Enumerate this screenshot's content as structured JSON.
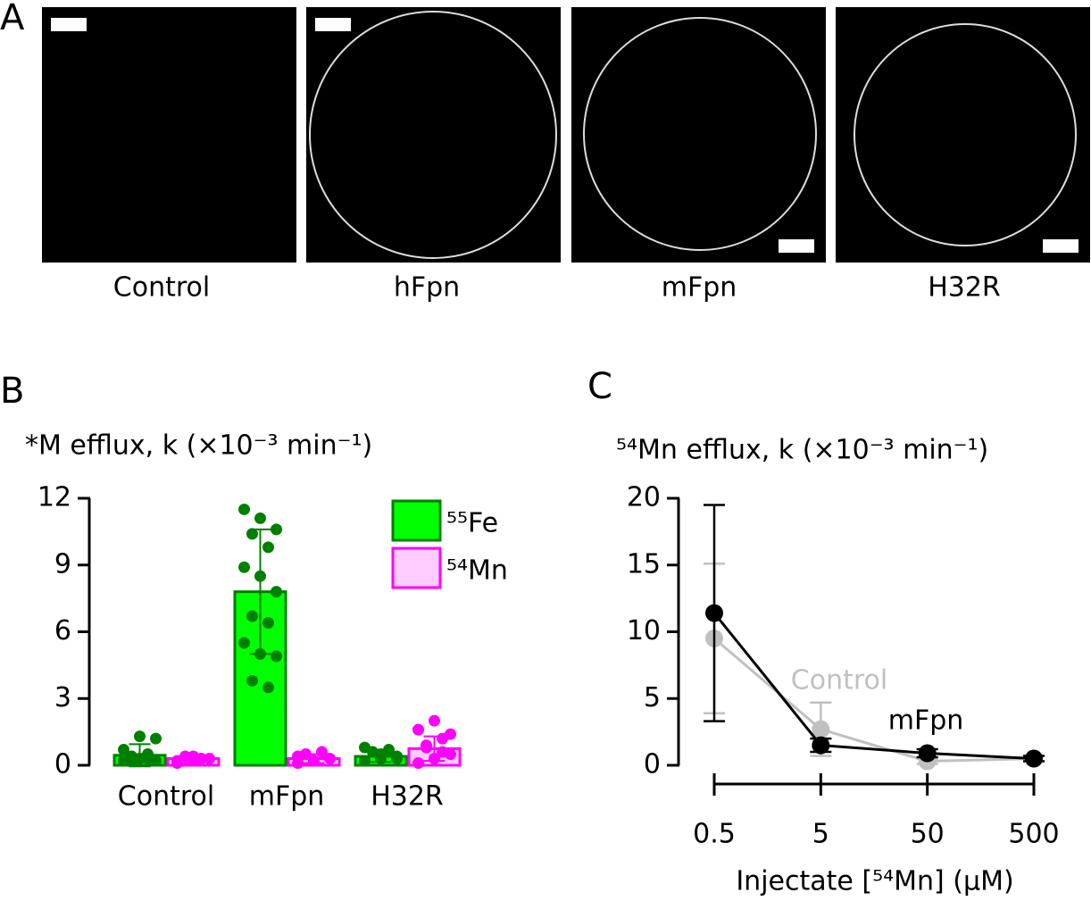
{
  "panel_a": {
    "letter": "A",
    "captions": [
      "Control",
      "hFpn",
      "mFpn",
      "H32R"
    ]
  },
  "chart_data": [
    {
      "type": "bar",
      "panel": "B",
      "title": "*M efflux, k (×10⁻³ min⁻¹)",
      "categories": [
        "Control",
        "mFpn",
        "H32R"
      ],
      "ylim": [
        0,
        12
      ],
      "yticks": [
        0,
        3,
        6,
        9,
        12
      ],
      "series": [
        {
          "name": "⁵⁵Fe",
          "color": "#00ff00",
          "edge": "#008000",
          "dot": "#008000",
          "values": [
            0.45,
            7.8,
            0.4
          ],
          "errors": [
            0.5,
            2.8,
            0.25
          ],
          "points": [
            [
              0.2,
              0.3,
              0.2,
              0.4,
              0.5,
              0.7,
              1.3,
              1.2,
              0.2,
              0.3
            ],
            [
              11.5,
              11.1,
              10.6,
              10.4,
              9.8,
              8.9,
              8.5,
              7.8,
              6.7,
              6.4,
              5.5,
              5.0,
              4.9,
              3.8,
              3.5
            ],
            [
              0.2,
              0.3,
              0.4,
              0.6,
              0.7,
              0.8,
              0.5,
              0.3
            ]
          ]
        },
        {
          "name": "⁵⁴Mn",
          "color": "#ffccff",
          "edge": "#ff00ff",
          "dot": "#ff00ff",
          "values": [
            0.3,
            0.3,
            0.75
          ],
          "errors": [
            0.2,
            0.2,
            0.55
          ],
          "points": [
            [
              0.1,
              0.2,
              0.3,
              0.4,
              0.3,
              0.2,
              0.4
            ],
            [
              0.1,
              0.2,
              0.3,
              0.5,
              0.6,
              0.4,
              0.2
            ],
            [
              0.1,
              0.3,
              0.5,
              0.8,
              1.2,
              1.6,
              2.0,
              1.4,
              0.9,
              0.6
            ]
          ]
        }
      ]
    },
    {
      "type": "line",
      "panel": "C",
      "title": "⁵⁴Mn efflux, k (×10⁻³ min⁻¹)",
      "x_label": "Injectate [⁵⁴Mn] (μM)",
      "log_x": true,
      "x": [
        0.5,
        5,
        50,
        500
      ],
      "xlim": [
        0.5,
        500
      ],
      "xticks": [
        0.5,
        5,
        50,
        500
      ],
      "ylim": [
        0,
        20
      ],
      "yticks": [
        0,
        5,
        10,
        15,
        20
      ],
      "series": [
        {
          "name": "Control",
          "color": "#c0c0c0",
          "values": [
            9.5,
            2.7,
            0.3,
            0.5
          ],
          "errors": [
            5.6,
            2.0,
            0.2,
            0.2
          ]
        },
        {
          "name": "mFpn",
          "color": "#000000",
          "values": [
            11.4,
            1.5,
            0.9,
            0.5
          ],
          "errors": [
            8.1,
            0.5,
            0.3,
            0.2
          ]
        }
      ]
    }
  ]
}
